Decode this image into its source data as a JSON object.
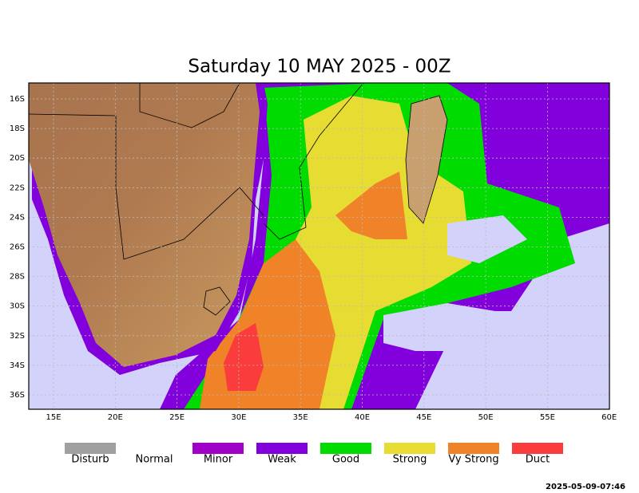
{
  "header": {
    "title": "Saturday 10 MAY 2025 - 00Z"
  },
  "map": {
    "lon_ticks": [
      "15E",
      "20E",
      "25E",
      "30E",
      "35E",
      "40E",
      "45E",
      "50E",
      "55E",
      "60E"
    ],
    "lat_ticks": [
      "16S",
      "18S",
      "20S",
      "22S",
      "24S",
      "26S",
      "28S",
      "30S",
      "32S",
      "34S",
      "36S"
    ]
  },
  "legend": [
    {
      "label": "Disturb",
      "color": "#a0a0a0"
    },
    {
      "label": "Normal",
      "color": "#ffffff"
    },
    {
      "label": "Minor",
      "color": "#a000c8"
    },
    {
      "label": "Weak",
      "color": "#8200dc"
    },
    {
      "label": "Good",
      "color": "#00dc00"
    },
    {
      "label": "Strong",
      "color": "#e6dc32"
    },
    {
      "label": "Vy Strong",
      "color": "#f08228"
    },
    {
      "label": "Duct",
      "color": "#fa3c3c"
    }
  ],
  "footer": {
    "timestamp": "2025-05-09-07:46"
  }
}
